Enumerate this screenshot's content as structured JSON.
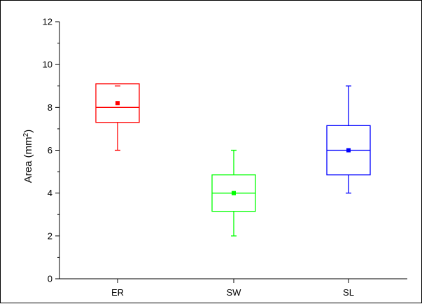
{
  "chart_data": {
    "type": "box",
    "title": "",
    "xlabel": "",
    "ylabel": "Area (mm",
    "ylabel_sup": "2",
    "ylabel_close": ")",
    "ylim": [
      0,
      12
    ],
    "yticks": [
      "0",
      "2",
      "4",
      "6",
      "8",
      "10",
      "12"
    ],
    "yminor_ticks": [
      1,
      3,
      5,
      7,
      9,
      11
    ],
    "grid": false,
    "legend": "none",
    "categories": [
      "ER",
      "SW",
      "SL"
    ],
    "series": [
      {
        "category": "ER",
        "color": "#ff0000",
        "whisker_low": 6.0,
        "q1": 7.3,
        "median": 8.0,
        "q3": 9.1,
        "whisker_high": 9.1,
        "mean": 8.2,
        "extra_marks": [
          9.0
        ]
      },
      {
        "category": "SW",
        "color": "#00ff00",
        "whisker_low": 2.0,
        "q1": 3.15,
        "median": 4.0,
        "q3": 4.85,
        "whisker_high": 6.0,
        "mean": 4.0,
        "extra_marks": []
      },
      {
        "category": "SL",
        "color": "#0000ff",
        "whisker_low": 4.0,
        "q1": 4.85,
        "median": 6.0,
        "q3": 7.15,
        "whisker_high": 9.0,
        "mean": 6.0,
        "extra_marks": []
      }
    ]
  }
}
